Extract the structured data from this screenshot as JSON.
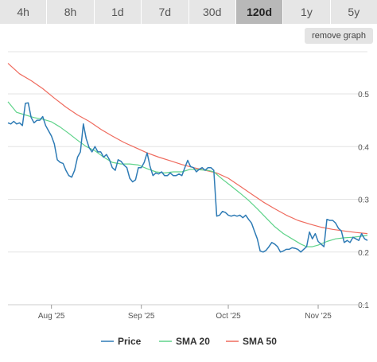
{
  "tabs": [
    {
      "label": "4h"
    },
    {
      "label": "8h"
    },
    {
      "label": "1d"
    },
    {
      "label": "7d"
    },
    {
      "label": "30d"
    },
    {
      "label": "120d",
      "active": true
    },
    {
      "label": "1y"
    },
    {
      "label": "5y"
    }
  ],
  "remove_graph_label": "remove graph",
  "colors": {
    "price": "#2e7bb5",
    "sma20": "#5fd38a",
    "sma50": "#ef6b5e",
    "grid": "#e3e3e3"
  },
  "chart_data": {
    "type": "line",
    "ylim": [
      0.1,
      0.58
    ],
    "ytick_labels": [
      "0.5",
      "0.4",
      "0.3",
      "0.2",
      "0.1"
    ],
    "yticks": [
      0.5,
      0.4,
      0.3,
      0.2,
      0.1
    ],
    "x_range": [
      0,
      124
    ],
    "xtick_labels": [
      "Aug '25",
      "Sep '25",
      "Oct '25",
      "Nov '25"
    ],
    "xticks": [
      15,
      46,
      76,
      107
    ],
    "legend": [
      "Price",
      "SMA 20",
      "SMA 50"
    ],
    "legend_position": "bottom",
    "grid": true,
    "series": [
      {
        "name": "Price",
        "color_key": "price",
        "points": [
          [
            0,
            0.445
          ],
          [
            1,
            0.443
          ],
          [
            2,
            0.448
          ],
          [
            3,
            0.443
          ],
          [
            4,
            0.445
          ],
          [
            5,
            0.44
          ],
          [
            6,
            0.482
          ],
          [
            7,
            0.483
          ],
          [
            8,
            0.455
          ],
          [
            9,
            0.445
          ],
          [
            10,
            0.45
          ],
          [
            11,
            0.45
          ],
          [
            12,
            0.457
          ],
          [
            13,
            0.44
          ],
          [
            14,
            0.43
          ],
          [
            15,
            0.42
          ],
          [
            16,
            0.405
          ],
          [
            17,
            0.375
          ],
          [
            18,
            0.37
          ],
          [
            19,
            0.368
          ],
          [
            20,
            0.355
          ],
          [
            21,
            0.345
          ],
          [
            22,
            0.342
          ],
          [
            23,
            0.355
          ],
          [
            24,
            0.38
          ],
          [
            25,
            0.39
          ],
          [
            26,
            0.443
          ],
          [
            27,
            0.415
          ],
          [
            28,
            0.398
          ],
          [
            29,
            0.39
          ],
          [
            30,
            0.4
          ],
          [
            31,
            0.39
          ],
          [
            32,
            0.39
          ],
          [
            33,
            0.38
          ],
          [
            34,
            0.385
          ],
          [
            35,
            0.375
          ],
          [
            36,
            0.36
          ],
          [
            37,
            0.355
          ],
          [
            38,
            0.375
          ],
          [
            39,
            0.372
          ],
          [
            40,
            0.365
          ],
          [
            41,
            0.36
          ],
          [
            42,
            0.34
          ],
          [
            43,
            0.333
          ],
          [
            44,
            0.337
          ],
          [
            45,
            0.36
          ],
          [
            46,
            0.36
          ],
          [
            47,
            0.37
          ],
          [
            48,
            0.388
          ],
          [
            49,
            0.363
          ],
          [
            50,
            0.345
          ],
          [
            51,
            0.35
          ],
          [
            52,
            0.348
          ],
          [
            53,
            0.352
          ],
          [
            54,
            0.345
          ],
          [
            55,
            0.345
          ],
          [
            56,
            0.35
          ],
          [
            57,
            0.345
          ],
          [
            58,
            0.345
          ],
          [
            59,
            0.348
          ],
          [
            60,
            0.345
          ],
          [
            61,
            0.36
          ],
          [
            62,
            0.374
          ],
          [
            63,
            0.362
          ],
          [
            64,
            0.36
          ],
          [
            65,
            0.352
          ],
          [
            66,
            0.357
          ],
          [
            67,
            0.36
          ],
          [
            68,
            0.355
          ],
          [
            69,
            0.36
          ],
          [
            70,
            0.36
          ],
          [
            71,
            0.355
          ],
          [
            72,
            0.268
          ],
          [
            73,
            0.27
          ],
          [
            74,
            0.277
          ],
          [
            75,
            0.275
          ],
          [
            76,
            0.27
          ],
          [
            77,
            0.268
          ],
          [
            78,
            0.27
          ],
          [
            79,
            0.268
          ],
          [
            80,
            0.27
          ],
          [
            81,
            0.265
          ],
          [
            82,
            0.27
          ],
          [
            83,
            0.262
          ],
          [
            84,
            0.255
          ],
          [
            85,
            0.24
          ],
          [
            86,
            0.225
          ],
          [
            87,
            0.202
          ],
          [
            88,
            0.2
          ],
          [
            89,
            0.203
          ],
          [
            90,
            0.21
          ],
          [
            91,
            0.218
          ],
          [
            92,
            0.215
          ],
          [
            93,
            0.21
          ],
          [
            94,
            0.2
          ],
          [
            95,
            0.202
          ],
          [
            96,
            0.205
          ],
          [
            97,
            0.205
          ],
          [
            98,
            0.208
          ],
          [
            99,
            0.207
          ],
          [
            100,
            0.205
          ],
          [
            101,
            0.2
          ],
          [
            102,
            0.205
          ],
          [
            103,
            0.21
          ],
          [
            104,
            0.238
          ],
          [
            105,
            0.225
          ],
          [
            106,
            0.235
          ],
          [
            107,
            0.22
          ],
          [
            108,
            0.215
          ],
          [
            109,
            0.21
          ],
          [
            110,
            0.262
          ],
          [
            111,
            0.26
          ],
          [
            112,
            0.26
          ],
          [
            113,
            0.255
          ],
          [
            114,
            0.245
          ],
          [
            115,
            0.24
          ],
          [
            116,
            0.218
          ],
          [
            117,
            0.222
          ],
          [
            118,
            0.218
          ],
          [
            119,
            0.228
          ],
          [
            120,
            0.225
          ],
          [
            121,
            0.222
          ],
          [
            122,
            0.235
          ],
          [
            123,
            0.225
          ],
          [
            124,
            0.222
          ]
        ]
      },
      {
        "name": "SMA 20",
        "color_key": "sma20",
        "points": [
          [
            0,
            0.485
          ],
          [
            3,
            0.465
          ],
          [
            6,
            0.46
          ],
          [
            9,
            0.455
          ],
          [
            12,
            0.452
          ],
          [
            15,
            0.447
          ],
          [
            18,
            0.437
          ],
          [
            21,
            0.425
          ],
          [
            24,
            0.412
          ],
          [
            27,
            0.4
          ],
          [
            30,
            0.392
          ],
          [
            33,
            0.38
          ],
          [
            36,
            0.37
          ],
          [
            39,
            0.367
          ],
          [
            42,
            0.367
          ],
          [
            45,
            0.365
          ],
          [
            48,
            0.358
          ],
          [
            51,
            0.352
          ],
          [
            54,
            0.35
          ],
          [
            57,
            0.352
          ],
          [
            60,
            0.352
          ],
          [
            63,
            0.357
          ],
          [
            66,
            0.356
          ],
          [
            69,
            0.355
          ],
          [
            71,
            0.352
          ],
          [
            74,
            0.338
          ],
          [
            77,
            0.325
          ],
          [
            80,
            0.312
          ],
          [
            83,
            0.298
          ],
          [
            86,
            0.282
          ],
          [
            89,
            0.265
          ],
          [
            92,
            0.248
          ],
          [
            95,
            0.235
          ],
          [
            98,
            0.225
          ],
          [
            101,
            0.215
          ],
          [
            103,
            0.21
          ],
          [
            105,
            0.21
          ],
          [
            107,
            0.213
          ],
          [
            110,
            0.22
          ],
          [
            113,
            0.225
          ],
          [
            116,
            0.227
          ],
          [
            119,
            0.228
          ],
          [
            122,
            0.23
          ],
          [
            124,
            0.232
          ]
        ]
      },
      {
        "name": "SMA 50",
        "color_key": "sma50",
        "points": [
          [
            0,
            0.558
          ],
          [
            4,
            0.538
          ],
          [
            8,
            0.525
          ],
          [
            12,
            0.51
          ],
          [
            16,
            0.492
          ],
          [
            20,
            0.475
          ],
          [
            24,
            0.46
          ],
          [
            28,
            0.448
          ],
          [
            32,
            0.433
          ],
          [
            36,
            0.42
          ],
          [
            40,
            0.408
          ],
          [
            44,
            0.398
          ],
          [
            48,
            0.388
          ],
          [
            52,
            0.38
          ],
          [
            56,
            0.373
          ],
          [
            60,
            0.366
          ],
          [
            64,
            0.36
          ],
          [
            68,
            0.355
          ],
          [
            72,
            0.35
          ],
          [
            76,
            0.34
          ],
          [
            80,
            0.325
          ],
          [
            84,
            0.31
          ],
          [
            88,
            0.295
          ],
          [
            92,
            0.282
          ],
          [
            96,
            0.27
          ],
          [
            100,
            0.26
          ],
          [
            104,
            0.253
          ],
          [
            108,
            0.247
          ],
          [
            112,
            0.243
          ],
          [
            116,
            0.24
          ],
          [
            120,
            0.237
          ],
          [
            124,
            0.235
          ]
        ]
      }
    ]
  }
}
